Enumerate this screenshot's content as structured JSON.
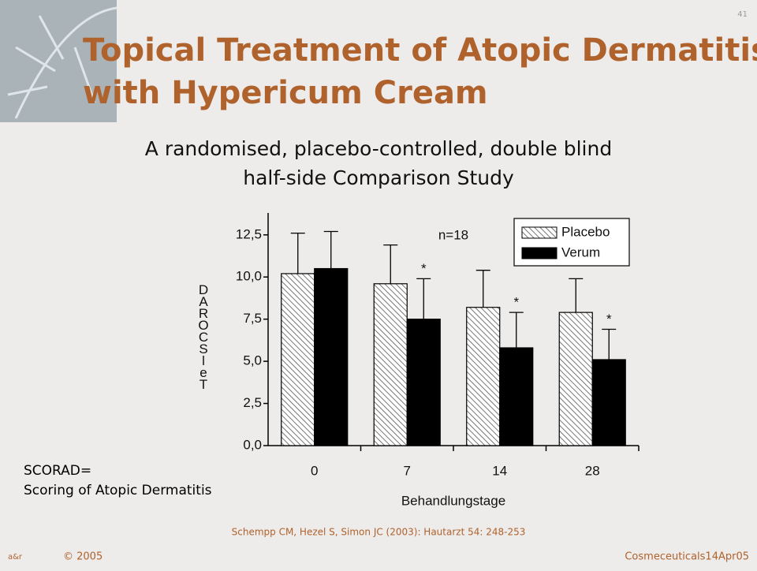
{
  "slide": {
    "page_number": "41",
    "title": [
      "Topical Treatment of Atopic Dermatitis",
      "with Hypericum Cream"
    ],
    "subtitle": [
      "A randomised, placebo-controlled, double blind",
      "half-side Comparison Study"
    ],
    "note": [
      "SCORAD=",
      "Scoring of Atopic Dermatitis"
    ],
    "citation": "Schempp CM, Hezel S, Simon JC (2003): Hautarzt 54: 248-253",
    "copyright": "© 2005",
    "footer": "Cosmeceuticals14Apr05"
  },
  "chart_data": {
    "type": "bar",
    "x_label": "Behandlungstage",
    "y_label": "DAROCSleT",
    "categories": [
      "0",
      "7",
      "14",
      "28"
    ],
    "series": [
      {
        "name": "Placebo",
        "color": "#555555",
        "values": [
          10.2,
          9.6,
          8.2,
          7.9
        ],
        "errors": [
          2.4,
          2.3,
          2.2,
          2.0
        ]
      },
      {
        "name": "Verum",
        "color": "#000000",
        "values": [
          10.5,
          7.5,
          5.8,
          5.1
        ],
        "errors": [
          2.2,
          2.4,
          2.1,
          1.8
        ]
      }
    ],
    "significance_marks": [
      null,
      "*",
      "*",
      "*"
    ],
    "annotation": "n=18",
    "ylim": [
      0,
      13.8
    ],
    "yticks": [
      {
        "value": 0,
        "label": "0,0"
      },
      {
        "value": 2.5,
        "label": "2,5"
      },
      {
        "value": 5,
        "label": "5,0"
      },
      {
        "value": 7.5,
        "label": "7,5"
      },
      {
        "value": 10,
        "label": "10,0"
      },
      {
        "value": 12.5,
        "label": "12,5"
      }
    ],
    "legend": "top-right"
  }
}
